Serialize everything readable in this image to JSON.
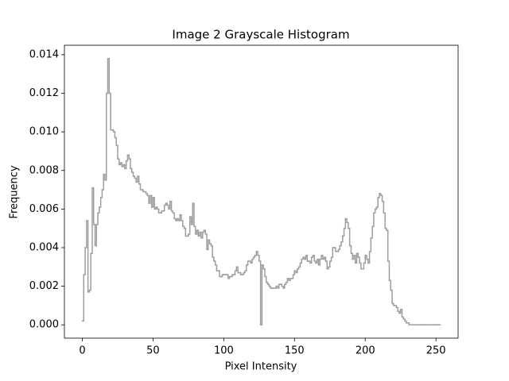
{
  "chart_data": {
    "type": "histogram",
    "title": "Image 2 Grayscale Histogram",
    "xlabel": "Pixel Intensity",
    "ylabel": "Frequency",
    "color": "#9e9e9e",
    "bins": [
      0,
      1,
      2,
      3,
      4,
      5,
      6,
      7,
      8,
      9,
      10,
      11,
      12,
      13,
      14,
      15,
      16,
      17,
      18,
      19,
      20,
      21,
      22,
      23,
      24,
      25,
      26,
      27,
      28,
      29,
      30,
      31,
      32,
      33,
      34,
      35,
      36,
      37,
      38,
      39,
      40,
      41,
      42,
      43,
      44,
      45,
      46,
      47,
      48,
      49,
      50,
      51,
      52,
      53,
      54,
      55,
      56,
      57,
      58,
      59,
      60,
      61,
      62,
      63,
      64,
      65,
      66,
      67,
      68,
      69,
      70,
      71,
      72,
      73,
      74,
      75,
      76,
      77,
      78,
      79,
      80,
      81,
      82,
      83,
      84,
      85,
      86,
      87,
      88,
      89,
      90,
      91,
      92,
      93,
      94,
      95,
      96,
      97,
      98,
      99,
      100,
      101,
      102,
      103,
      104,
      105,
      106,
      107,
      108,
      109,
      110,
      111,
      112,
      113,
      114,
      115,
      116,
      117,
      118,
      119,
      120,
      121,
      122,
      123,
      124,
      125,
      126,
      127,
      128,
      129,
      130,
      131,
      132,
      133,
      134,
      135,
      136,
      137,
      138,
      139,
      140,
      141,
      142,
      143,
      144,
      145,
      146,
      147,
      148,
      149,
      150,
      151,
      152,
      153,
      154,
      155,
      156,
      157,
      158,
      159,
      160,
      161,
      162,
      163,
      164,
      165,
      166,
      167,
      168,
      169,
      170,
      171,
      172,
      173,
      174,
      175,
      176,
      177,
      178,
      179,
      180,
      181,
      182,
      183,
      184,
      185,
      186,
      187,
      188,
      189,
      190,
      191,
      192,
      193,
      194,
      195,
      196,
      197,
      198,
      199,
      200,
      201,
      202,
      203,
      204,
      205,
      206,
      207,
      208,
      209,
      210,
      211,
      212,
      213,
      214,
      215,
      216,
      217,
      218,
      219,
      220,
      221,
      222,
      223,
      224,
      225,
      226,
      227,
      228,
      229,
      230,
      231,
      232,
      233,
      234,
      235,
      236,
      237,
      238,
      239,
      240,
      241,
      242,
      243,
      244,
      245,
      246,
      247,
      248,
      249,
      250,
      251,
      252,
      253
    ],
    "values": [
      0.0002,
      0.0026,
      0.004,
      0.0054,
      0.0017,
      0.0018,
      0.0037,
      0.0071,
      0.0052,
      0.0041,
      0.0052,
      0.0058,
      0.0061,
      0.0066,
      0.007,
      0.0078,
      0.0075,
      0.012,
      0.0138,
      0.012,
      0.0101,
      0.0101,
      0.01,
      0.0097,
      0.0093,
      0.0086,
      0.0083,
      0.0084,
      0.0082,
      0.0083,
      0.0081,
      0.0085,
      0.0088,
      0.0086,
      0.0081,
      0.0079,
      0.0077,
      0.0076,
      0.0074,
      0.0077,
      0.0073,
      0.007,
      0.007,
      0.0069,
      0.0069,
      0.0068,
      0.0067,
      0.0063,
      0.0067,
      0.0061,
      0.0066,
      0.006,
      0.0061,
      0.006,
      0.0058,
      0.0058,
      0.0059,
      0.0059,
      0.0062,
      0.0063,
      0.0062,
      0.006,
      0.0064,
      0.0059,
      0.0058,
      0.0055,
      0.0054,
      0.0055,
      0.0054,
      0.0057,
      0.0054,
      0.0051,
      0.005,
      0.0046,
      0.0046,
      0.0047,
      0.0056,
      0.0052,
      0.0063,
      0.0051,
      0.0047,
      0.0049,
      0.0046,
      0.0048,
      0.0045,
      0.0048,
      0.0049,
      0.0047,
      0.0039,
      0.0044,
      0.0042,
      0.0041,
      0.0035,
      0.0033,
      0.0031,
      0.0028,
      0.0028,
      0.0025,
      0.0025,
      0.0026,
      0.0026,
      0.0026,
      0.0026,
      0.0024,
      0.0025,
      0.0025,
      0.0026,
      0.0026,
      0.0028,
      0.003,
      0.0027,
      0.0027,
      0.0026,
      0.0026,
      0.0027,
      0.0028,
      0.0031,
      0.0033,
      0.0033,
      0.0032,
      0.0034,
      0.0035,
      0.0036,
      0.0038,
      0.0036,
      0.0033,
      0.0,
      0.0031,
      0.0029,
      0.0025,
      0.0022,
      0.0021,
      0.002,
      0.0019,
      0.0019,
      0.0019,
      0.0019,
      0.002,
      0.0019,
      0.0021,
      0.0021,
      0.002,
      0.0019,
      0.0021,
      0.0022,
      0.0024,
      0.0023,
      0.0024,
      0.0024,
      0.0026,
      0.0028,
      0.0027,
      0.0029,
      0.003,
      0.0032,
      0.0034,
      0.0035,
      0.0034,
      0.0036,
      0.0033,
      0.0033,
      0.0032,
      0.0035,
      0.0036,
      0.0033,
      0.0032,
      0.0034,
      0.0031,
      0.0034,
      0.0036,
      0.0034,
      0.0035,
      0.0033,
      0.0029,
      0.003,
      0.0033,
      0.0035,
      0.004,
      0.004,
      0.0038,
      0.0038,
      0.0039,
      0.0041,
      0.0043,
      0.0046,
      0.005,
      0.0055,
      0.0053,
      0.005,
      0.0041,
      0.0037,
      0.0034,
      0.0036,
      0.0032,
      0.0037,
      0.0035,
      0.0032,
      0.0029,
      0.0029,
      0.0032,
      0.0036,
      0.0034,
      0.0032,
      0.0038,
      0.0045,
      0.0051,
      0.0058,
      0.006,
      0.0061,
      0.0066,
      0.0068,
      0.0067,
      0.0064,
      0.0058,
      0.005,
      0.0049,
      0.0033,
      0.0023,
      0.0018,
      0.0011,
      0.001,
      0.001,
      0.0009,
      0.0007,
      0.0006,
      0.0008,
      0.0004,
      0.0003,
      0.0002,
      0.0001,
      0.0001,
      0,
      0,
      0,
      0,
      0,
      0,
      0,
      0,
      0,
      0,
      0,
      0,
      0,
      0,
      0,
      0,
      0,
      0,
      0,
      0,
      0,
      0
    ],
    "xlim": [
      -12.65,
      265.65
    ],
    "ylim": [
      -0.00069,
      0.01449
    ],
    "xticks": [
      0,
      50,
      100,
      150,
      200,
      250
    ],
    "yticks": [
      {
        "value": 0,
        "label": "0.000"
      },
      {
        "value": 0.002,
        "label": "0.002"
      },
      {
        "value": 0.004,
        "label": "0.004"
      },
      {
        "value": 0.006,
        "label": "0.006"
      },
      {
        "value": 0.008,
        "label": "0.008"
      },
      {
        "value": 0.01,
        "label": "0.010"
      },
      {
        "value": 0.012,
        "label": "0.012"
      },
      {
        "value": 0.014,
        "label": "0.014"
      }
    ],
    "grid": false
  }
}
